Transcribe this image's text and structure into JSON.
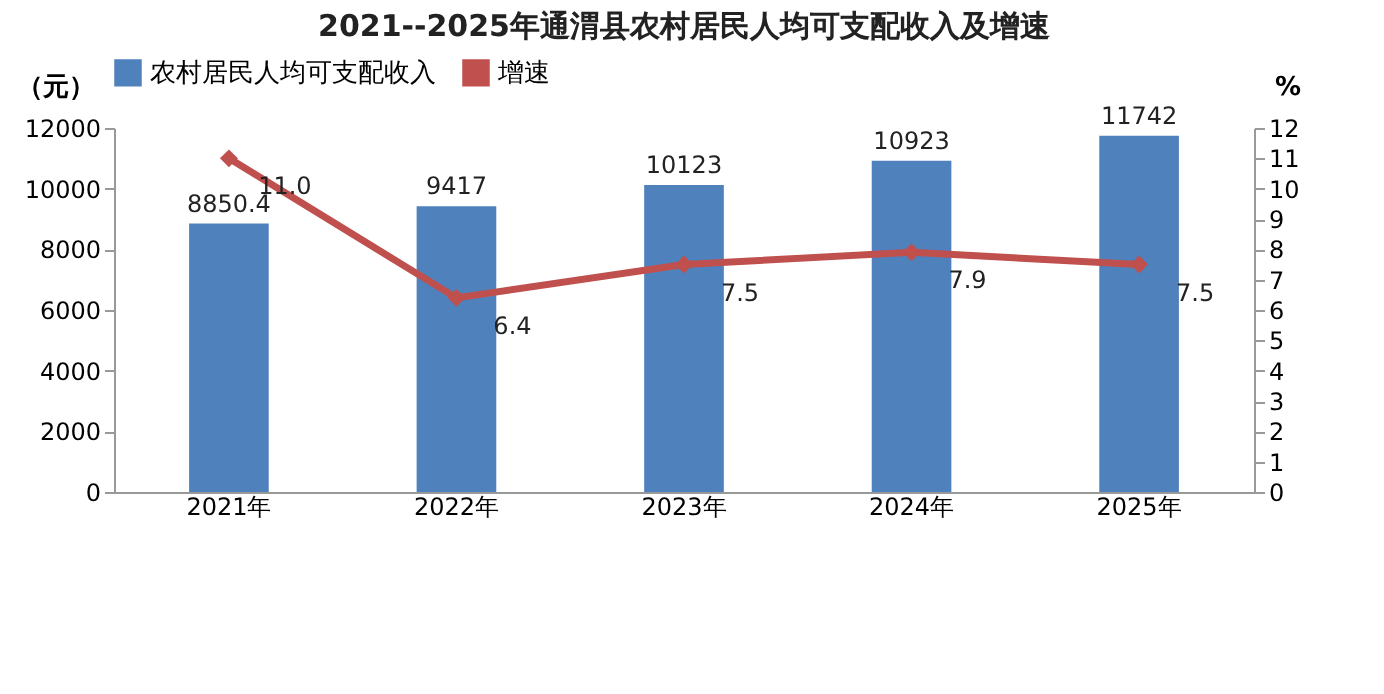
{
  "chart_data": {
    "type": "bar",
    "title": "2021--2025年通渭县农村居民人均可支配收入及增速",
    "categories": [
      "2021年",
      "2022年",
      "2023年",
      "2024年",
      "2025年"
    ],
    "ylabel": "（元）",
    "y2label": "%",
    "ylim": [
      0,
      12000
    ],
    "yticks": [
      0,
      2000,
      4000,
      6000,
      8000,
      10000,
      12000
    ],
    "y2lim": [
      0,
      12
    ],
    "y2ticks": [
      0,
      1,
      2,
      3,
      4,
      5,
      6,
      7,
      8,
      9,
      10,
      11,
      12
    ],
    "series": [
      {
        "name": "农村居民人均可支配收入",
        "color": "#4f81bd",
        "values": [
          8850.4,
          9417,
          10123,
          10923,
          11742
        ],
        "value_labels": [
          "8850.4",
          "9417",
          "10123",
          "10923",
          "11742"
        ]
      },
      {
        "name": "增速",
        "type": "line",
        "axis": "y2",
        "color": "#c0504d",
        "values": [
          11.0,
          6.4,
          7.5,
          7.9,
          7.5
        ],
        "value_labels": [
          "11.0",
          "6.4",
          "7.5",
          "7.9",
          "7.5"
        ]
      }
    ],
    "legend": "top",
    "grid": false,
    "marker": "diamond",
    "line_style": "solid"
  }
}
